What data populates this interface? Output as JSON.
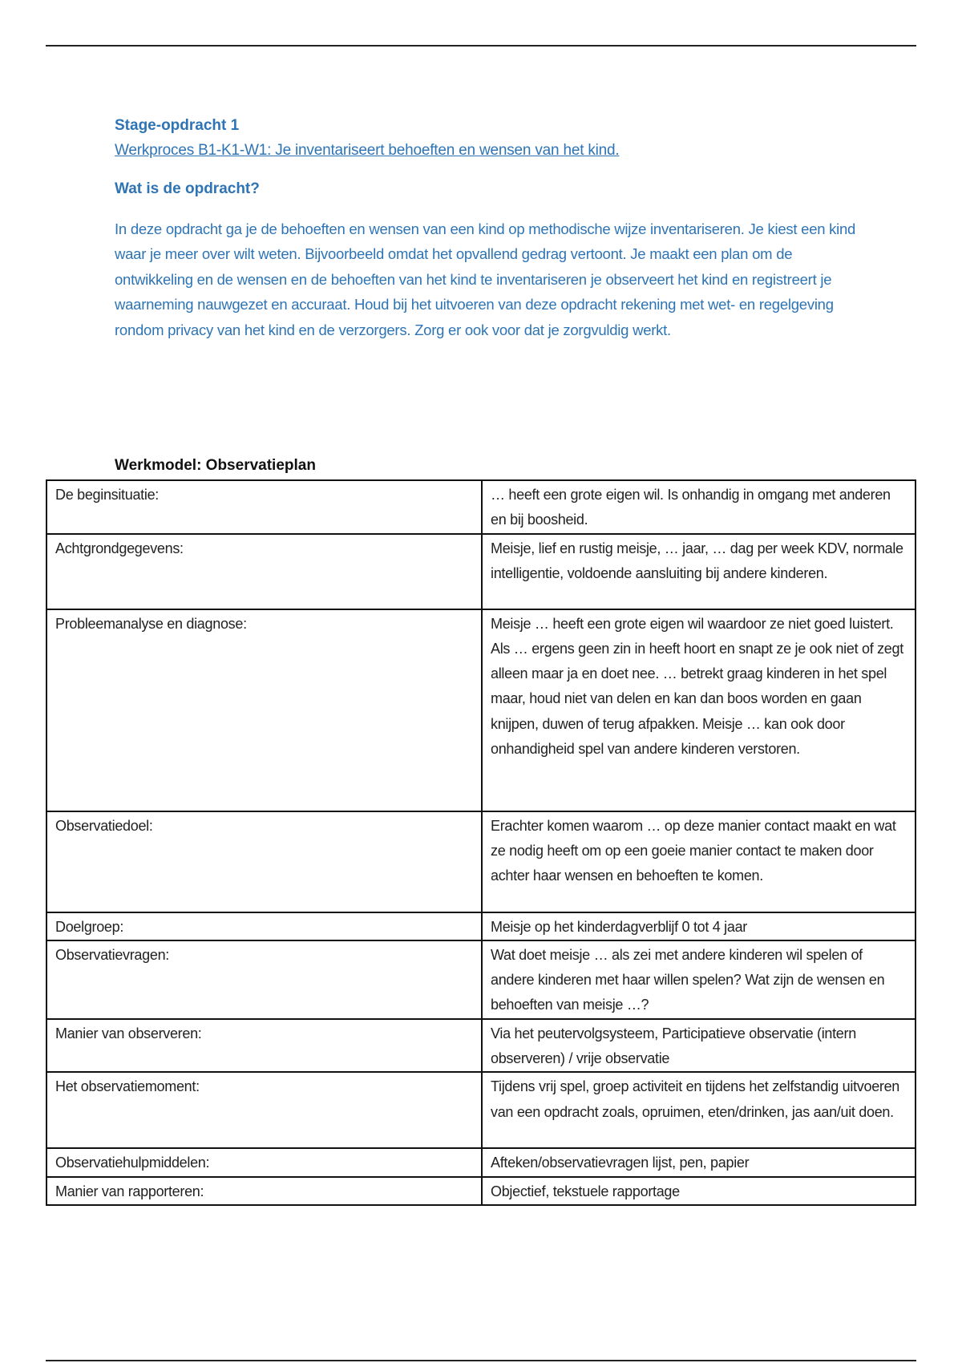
{
  "header": {
    "title": "Stage-opdracht 1",
    "link": "Werkproces B1-K1-W1: Je inventariseert behoeften en wensen van het kind.",
    "question": "Wat is de opdracht?",
    "intro": "In deze opdracht ga je de behoeften en wensen van een kind op methodische wijze inventariseren. Je kiest een kind waar je meer over wilt weten. Bijvoorbeeld omdat het opvallend gedrag vertoont. Je maakt een plan om de ontwikkeling en de wensen en de behoeften van het kind te inventariseren je observeert het kind en registreert je waarneming nauwgezet en accuraat. Houd bij het uitvoeren van deze opdracht rekening met wet- en regelgeving rondom privacy van het kind en de verzorgers. Zorg er ook voor dat je zorgvuldig werkt.",
    "color": "#2e74b5"
  },
  "table": {
    "title": "Werkmodel: Observatieplan",
    "rows": [
      {
        "label": "De beginsituatie:",
        "value": "… heeft een grote eigen wil. Is onhandig in omgang met anderen en bij boosheid."
      },
      {
        "label": "Achtgrondgegevens:",
        "value": "Meisje, lief en rustig meisje, … jaar, … dag per week KDV, normale intelligentie, voldoende aansluiting bij andere kinderen."
      },
      {
        "label": "Probleemanalyse en diagnose:",
        "value": "Meisje … heeft een grote eigen wil waardoor ze niet goed luistert. Als … ergens geen zin in heeft hoort en snapt ze je ook niet of zegt alleen maar ja en doet nee. … betrekt graag kinderen in het spel maar, houd niet van delen en kan dan boos worden en gaan knijpen, duwen of terug afpakken. Meisje … kan ook door onhandigheid spel van andere kinderen verstoren."
      },
      {
        "label": "Observatiedoel:",
        "value": "Erachter komen waarom … op deze manier contact maakt en wat ze nodig heeft om op een goeie manier contact te maken door achter haar wensen en behoeften te komen."
      },
      {
        "label": "Doelgroep:",
        "value": "Meisje op het kinderdagverblijf 0 tot 4 jaar"
      },
      {
        "label": "Observatievragen:",
        "value": "Wat doet meisje … als zei met andere kinderen wil spelen of andere kinderen met haar willen spelen? Wat zijn de wensen en behoeften van meisje …?"
      },
      {
        "label": "Manier van observeren:",
        "value": "Via het peutervolgsysteem, Participatieve observatie (intern observeren) / vrije observatie"
      },
      {
        "label": "Het observatiemoment:",
        "value": "Tijdens vrij spel, groep activiteit en tijdens het zelfstandig uitvoeren van een opdracht zoals, opruimen, eten/drinken, jas aan/uit doen."
      },
      {
        "label": "Observatiehulpmiddelen:",
        "value": "Afteken/observatievragen lijst, pen, papier"
      },
      {
        "label": "Manier van rapporteren:",
        "value": "Objectief, tekstuele rapportage"
      }
    ]
  }
}
